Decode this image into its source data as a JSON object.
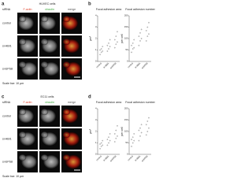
{
  "panels": [
    {
      "letter": "a",
      "title": "HUVEC cells",
      "row_header": "siRNA",
      "columns": [
        {
          "label": "F-actin",
          "color": "#e0402a"
        },
        {
          "label": "vinculin",
          "color": "#3aa83a"
        },
        {
          "label": "merge",
          "color": "#555555"
        }
      ],
      "rows": [
        "control",
        "si-ABI1",
        "si-EPS8"
      ],
      "scale_note": "Scale bar: 10 µm"
    },
    {
      "letter": "c",
      "title": "EC11 cells",
      "row_header": "siRNA",
      "columns": [
        {
          "label": "F-actin",
          "color": "#e0402a"
        },
        {
          "label": "vinculin",
          "color": "#3aa83a"
        },
        {
          "label": "merge",
          "color": "#555555"
        }
      ],
      "rows": [
        "control",
        "si-ABI1",
        "si-EPS8"
      ],
      "scale_note": "Scale bar: 10 µm"
    }
  ],
  "plots": [
    {
      "letter": "b",
      "charts": [
        {
          "title": "Focal adhesion area",
          "ylabel": "µm²",
          "categories": [
            "control",
            "si-ABI1",
            "si-EPS8"
          ],
          "ylim": [
            0,
            4
          ],
          "yticks": [
            0,
            1,
            2,
            3,
            4
          ],
          "groups": [
            [
              0.6,
              0.8,
              0.9,
              1.0,
              1.1,
              1.3
            ],
            [
              0.9,
              1.1,
              1.3,
              1.4,
              1.6,
              1.9
            ],
            [
              1.2,
              1.5,
              1.7,
              1.9,
              2.2,
              2.6
            ]
          ]
        },
        {
          "title": "Focal adhesion number",
          "ylabel": "per cell",
          "categories": [
            "control",
            "si-ABI1",
            "si-EPS8"
          ],
          "ylim": [
            0,
            200
          ],
          "yticks": [
            0,
            50,
            100,
            150,
            200
          ],
          "groups": [
            [
              40,
              55,
              60,
              70,
              80,
              95
            ],
            [
              70,
              90,
              100,
              110,
              125,
              140
            ],
            [
              90,
              110,
              120,
              135,
              150,
              170
            ]
          ]
        }
      ]
    },
    {
      "letter": "d",
      "charts": [
        {
          "title": "Focal adhesion area",
          "ylabel": "µm²",
          "categories": [
            "control",
            "si-ABI1",
            "si-EPS8"
          ],
          "ylim": [
            0,
            4
          ],
          "yticks": [
            0,
            1,
            2,
            3,
            4
          ],
          "groups": [
            [
              0.5,
              0.7,
              0.8,
              0.9,
              1.0,
              1.2
            ],
            [
              0.8,
              1.0,
              1.2,
              1.3,
              1.5,
              1.8
            ],
            [
              1.1,
              1.4,
              1.6,
              1.8,
              2.1,
              2.5
            ]
          ]
        },
        {
          "title": "Focal adhesion number",
          "ylabel": "per cell",
          "categories": [
            "control",
            "si-ABI1",
            "si-EPS8"
          ],
          "ylim": [
            0,
            200
          ],
          "yticks": [
            0,
            50,
            100,
            150,
            200
          ],
          "groups": [
            [
              35,
              50,
              60,
              65,
              75,
              90
            ],
            [
              60,
              80,
              95,
              105,
              115,
              130
            ],
            [
              85,
              100,
              115,
              130,
              145,
              160
            ]
          ]
        }
      ]
    }
  ]
}
